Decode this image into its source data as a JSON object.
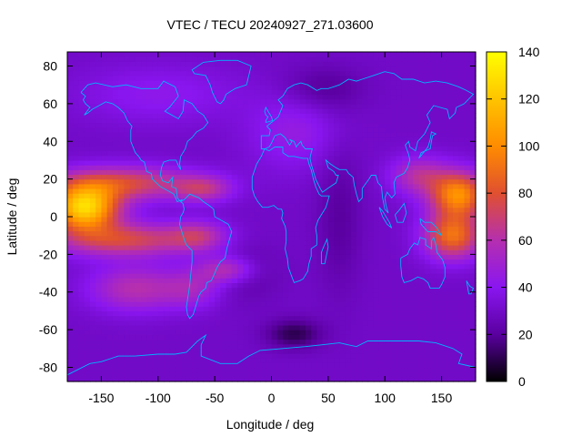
{
  "chart_data": {
    "type": "heatmap",
    "title": "VTEC / TECU 20240927_271.03600",
    "xlabel": "Longitude / deg",
    "ylabel": "Latitude / deg",
    "xlim": [
      -180,
      180
    ],
    "ylim": [
      -87.5,
      87.5
    ],
    "xticks": [
      -150,
      -100,
      -50,
      0,
      50,
      100,
      150
    ],
    "yticks": [
      -80,
      -60,
      -40,
      -20,
      0,
      20,
      40,
      60,
      80
    ],
    "colorbar": {
      "min": 0,
      "max": 140,
      "ticks": [
        0,
        20,
        40,
        60,
        80,
        100,
        120,
        140
      ],
      "palette": [
        "#000000",
        "#5a00a0",
        "#8a16f0",
        "#b52faf",
        "#e05030",
        "#ff8c00",
        "#ffc400",
        "#ffff00"
      ]
    },
    "coastline_color": "#00b4ff",
    "grid": false,
    "field_description": {
      "max_cell": {
        "lon": -165,
        "lat": 5,
        "value": 125
      },
      "anomaly_crests": [
        {
          "lon": -170,
          "lat": 18,
          "value": 95
        },
        {
          "lon": -170,
          "lat": -12,
          "value": 90
        },
        {
          "lon": 170,
          "lat": 12,
          "value": 95
        },
        {
          "lon": 165,
          "lat": -10,
          "value": 85
        }
      ],
      "minimum_cells": [
        {
          "lon": 20,
          "lat": -62,
          "value": 10
        },
        {
          "lon": 45,
          "lat": 68,
          "value": 20
        },
        {
          "lon": 60,
          "lat": 0,
          "value": 25
        }
      ]
    }
  }
}
